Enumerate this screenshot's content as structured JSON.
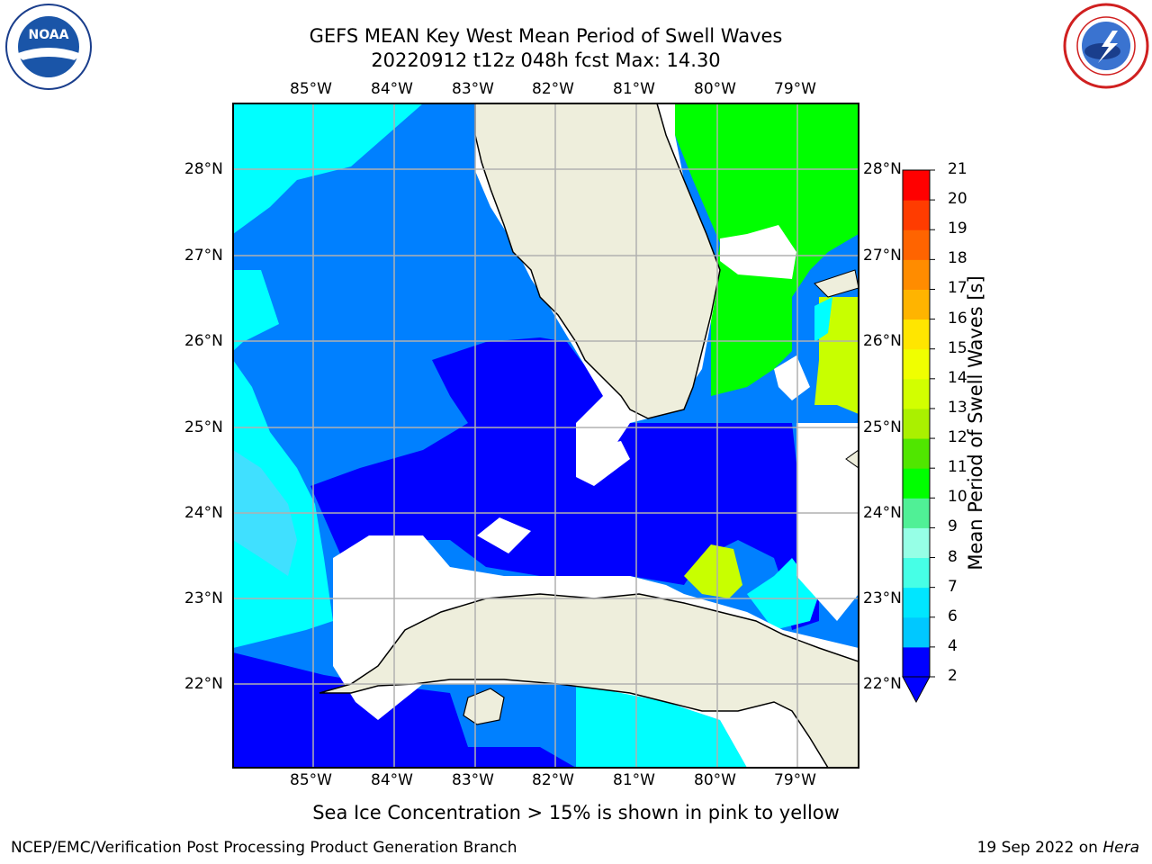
{
  "title": {
    "line1": "GEFS MEAN Key West Mean Period of Swell Waves",
    "line2": "20220912 t12z 048h fcst   Max: 14.30"
  },
  "logos": {
    "noaa_text": "NOAA",
    "noaa_ring": "NATIONAL OCEANIC AND ATMOSPHERIC ADMINISTRATION  U.S. DEPARTMENT OF COMMERCE",
    "nws_ring": "NATIONAL WEATHER SERVICE"
  },
  "map": {
    "lon_labels": [
      "85°W",
      "84°W",
      "83°W",
      "82°W",
      "81°W",
      "80°W",
      "79°W"
    ],
    "lat_labels": [
      "28°N",
      "27°N",
      "26°N",
      "25°N",
      "24°N",
      "23°N",
      "22°N"
    ],
    "land_color": "#eeeedc",
    "gridline_color": "#b0b0b0"
  },
  "colorbar": {
    "label": "Mean Period of Swell Waves [s]",
    "ticks": [
      "21",
      "20",
      "19",
      "18",
      "17",
      "16",
      "15",
      "14",
      "13",
      "12",
      "11",
      "10",
      "9",
      "8",
      "7",
      "6",
      "4",
      "2"
    ],
    "bins": [
      {
        "range": "2-4",
        "color": "#0000ff"
      },
      {
        "range": "4-6",
        "color": "#00c8ff"
      },
      {
        "range": "6-7",
        "color": "#00e6ff"
      },
      {
        "range": "7-8",
        "color": "#46ffe6"
      },
      {
        "range": "8-9",
        "color": "#96ffe6"
      },
      {
        "range": "9-10",
        "color": "#50f096"
      },
      {
        "range": "10-11",
        "color": "#00ff00"
      },
      {
        "range": "11-12",
        "color": "#50e600"
      },
      {
        "range": "12-13",
        "color": "#aaf000"
      },
      {
        "range": "13-14",
        "color": "#d2ff00"
      },
      {
        "range": "14-15",
        "color": "#f0ff00"
      },
      {
        "range": "15-16",
        "color": "#ffe600"
      },
      {
        "range": "16-17",
        "color": "#ffb400"
      },
      {
        "range": "17-18",
        "color": "#ff8c00"
      },
      {
        "range": "18-19",
        "color": "#ff6400"
      },
      {
        "range": "19-20",
        "color": "#ff3c00"
      },
      {
        "range": "20-21",
        "color": "#ff0000"
      }
    ],
    "under_color": "#0000ff"
  },
  "caption": "Sea Ice Concentration > 15% is shown in pink to yellow",
  "footer": {
    "left": "NCEP/EMC/Verification Post Processing Product Generation Branch",
    "right_date": "19 Sep 2022 on ",
    "right_host": "Hera"
  }
}
